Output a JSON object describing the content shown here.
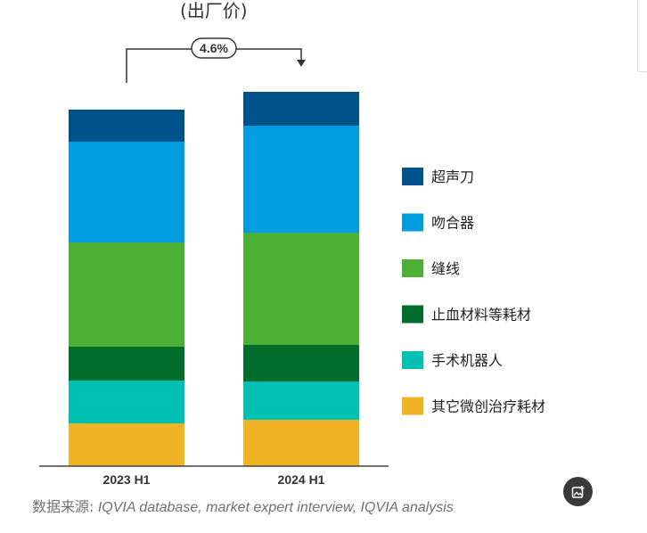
{
  "title_fragment": "(出厂价)",
  "source_label": "数据来源:",
  "source_text": " IQVIA database, market expert interview, IQVIA analysis",
  "growth_badge": "4.6%",
  "colors": {
    "超声刀": "#00538a",
    "吻合器": "#009ee0",
    "缝线": "#4cb034",
    "止血材料等耗材": "#006d2c",
    "手术机器人": "#00bfb3",
    "其它微创治疗耗材": "#f0b323"
  },
  "chart_data": {
    "type": "bar",
    "stacked": true,
    "title": "(出厂价)",
    "categories": [
      "2023 H1",
      "2024 H1"
    ],
    "series": [
      {
        "name": "其它微创治疗耗材",
        "values": [
          48,
          52
        ]
      },
      {
        "name": "手术机器人",
        "values": [
          48,
          43
        ]
      },
      {
        "name": "止血材料等耗材",
        "values": [
          38,
          41
        ]
      },
      {
        "name": "缝线",
        "values": [
          117,
          126
        ]
      },
      {
        "name": "吻合器",
        "values": [
          113,
          120
        ]
      },
      {
        "name": "超声刀",
        "values": [
          36,
          38
        ]
      }
    ],
    "legend": [
      "超声刀",
      "吻合器",
      "缝线",
      "止血材料等耗材",
      "手术机器人",
      "其它微创治疗耗材"
    ],
    "legend_position": "right",
    "annotation": "4.6%",
    "grid": false
  }
}
